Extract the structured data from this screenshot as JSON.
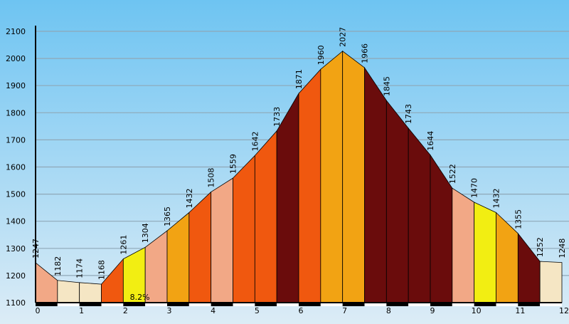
{
  "chart_data": {
    "type": "area",
    "title": "",
    "xlabel": "",
    "ylabel": "",
    "xlim": [
      0,
      12
    ],
    "ylim": [
      1100,
      2100
    ],
    "y_ticks": [
      1100,
      1200,
      1300,
      1400,
      1500,
      1600,
      1700,
      1800,
      1900,
      2000,
      2100
    ],
    "x_ticks": [
      0,
      1,
      2,
      3,
      4,
      5,
      6,
      7,
      8,
      9,
      10,
      11,
      12
    ],
    "grid": true,
    "profile": [
      {
        "x": 0.0,
        "y": 1247,
        "label": "1247"
      },
      {
        "x": 0.5,
        "y": 1182,
        "label": "1182"
      },
      {
        "x": 1.0,
        "y": 1174,
        "label": "1174"
      },
      {
        "x": 1.5,
        "y": 1168,
        "label": "1168"
      },
      {
        "x": 2.0,
        "y": 1261,
        "label": "1261"
      },
      {
        "x": 2.5,
        "y": 1304,
        "label": "1304"
      },
      {
        "x": 3.0,
        "y": 1365,
        "label": "1365"
      },
      {
        "x": 3.5,
        "y": 1432,
        "label": "1432"
      },
      {
        "x": 4.0,
        "y": 1508,
        "label": "1508"
      },
      {
        "x": 4.5,
        "y": 1559,
        "label": "1559"
      },
      {
        "x": 5.0,
        "y": 1642,
        "label": "1642"
      },
      {
        "x": 5.5,
        "y": 1733,
        "label": "1733"
      },
      {
        "x": 6.0,
        "y": 1871,
        "label": "1871"
      },
      {
        "x": 6.5,
        "y": 1960,
        "label": "1960"
      },
      {
        "x": 7.0,
        "y": 2027,
        "label": "2027"
      },
      {
        "x": 7.5,
        "y": 1966,
        "label": "1966"
      },
      {
        "x": 8.0,
        "y": 1845,
        "label": "1845"
      },
      {
        "x": 8.5,
        "y": 1743,
        "label": "1743"
      },
      {
        "x": 9.0,
        "y": 1644,
        "label": "1644"
      },
      {
        "x": 9.5,
        "y": 1522,
        "label": "1522"
      },
      {
        "x": 10.0,
        "y": 1470,
        "label": "1470"
      },
      {
        "x": 10.5,
        "y": 1432,
        "label": "1432"
      },
      {
        "x": 11.0,
        "y": 1355,
        "label": "1355"
      },
      {
        "x": 11.5,
        "y": 1252,
        "label": "1252"
      },
      {
        "x": 12.0,
        "y": 1248,
        "label": "1248"
      }
    ],
    "segment_colors": [
      "#f2a886",
      "#f5e6c4",
      "#f5e6c4",
      "#f0580f",
      "#f2ee12",
      "#f2a886",
      "#f2a313",
      "#f0580f",
      "#f2a886",
      "#f0580f",
      "#f0580f",
      "#6a0c0c",
      "#f0580f",
      "#f2a313",
      "#f2a313",
      "#6a0c0c",
      "#6a0c0c",
      "#6a0c0c",
      "#6a0c0c",
      "#f2a886",
      "#f2ee12",
      "#f2a313",
      "#6a0c0c",
      "#f5e6c4"
    ],
    "annotations": [
      {
        "text": "8.2%",
        "x": 2.15,
        "y": 1110
      }
    ],
    "colors": {
      "sky_top": "#6ec4f2",
      "sky_bottom": "#dcecf6",
      "gridline": "#8fa8b8",
      "axis": "#000000"
    }
  }
}
